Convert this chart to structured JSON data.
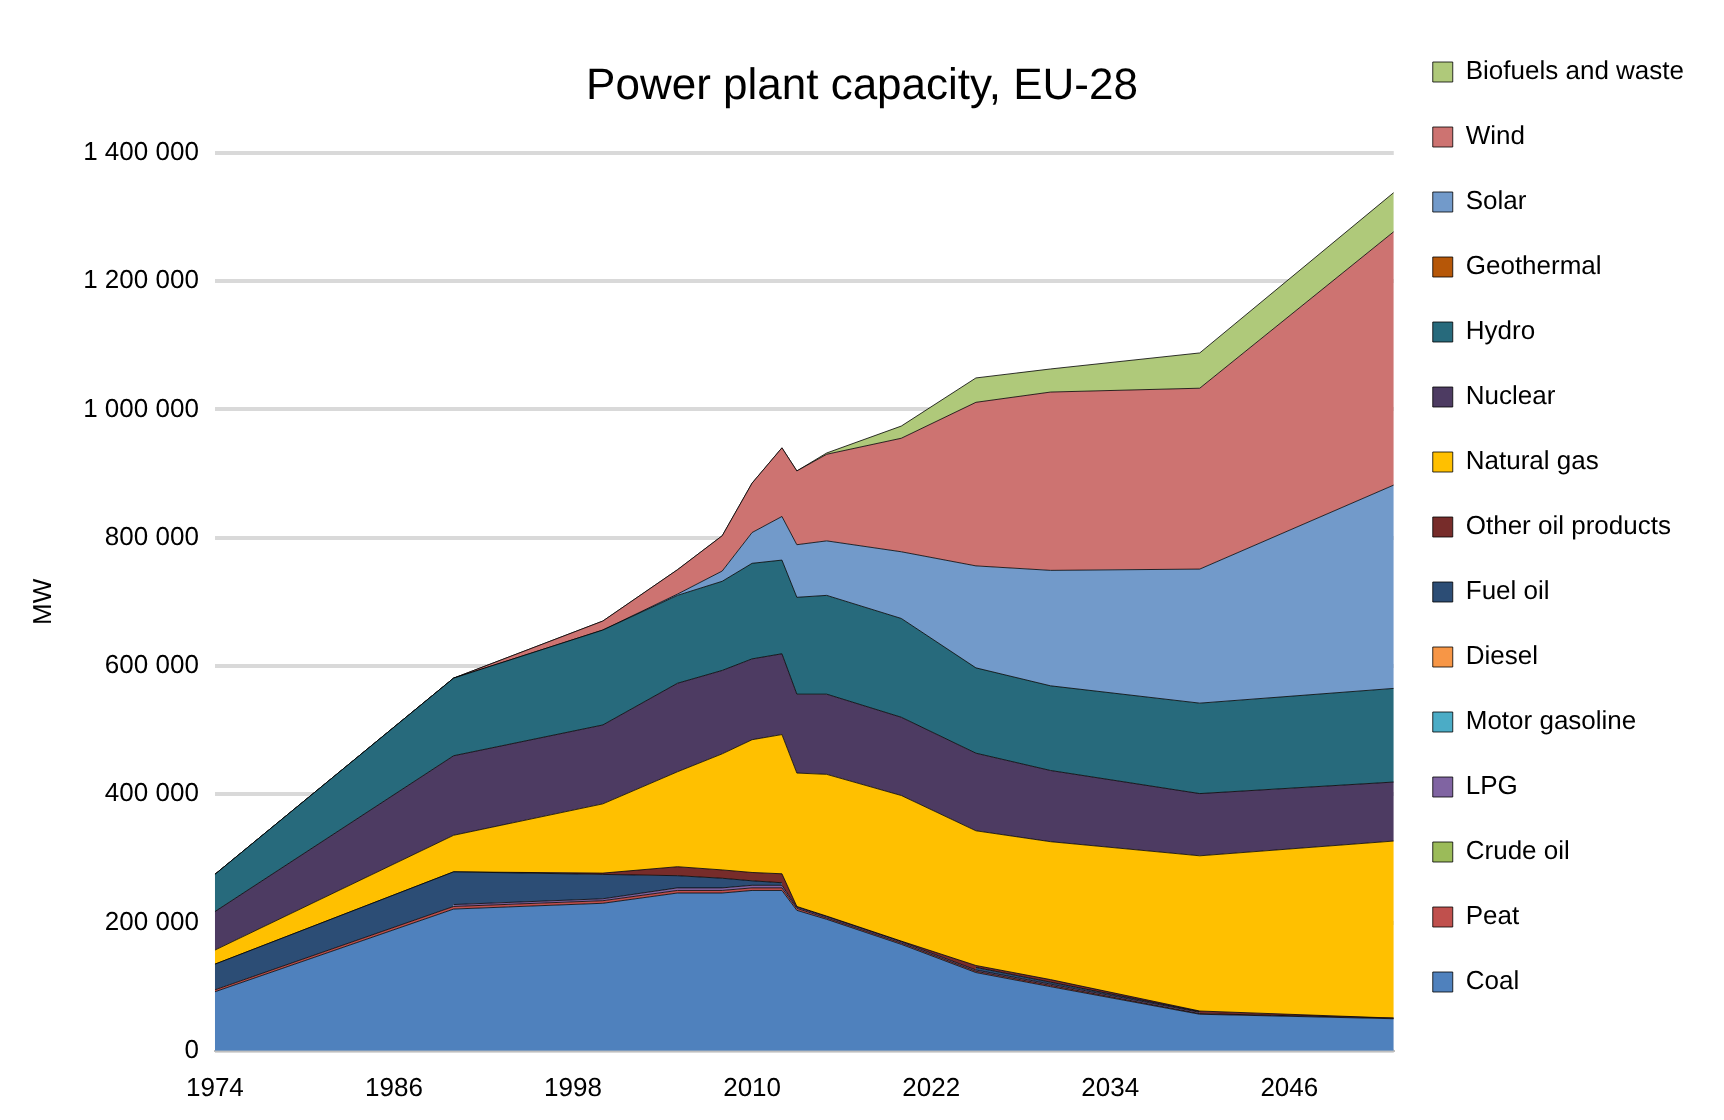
{
  "chart_data": {
    "type": "area",
    "stacked": true,
    "title": "Power plant capacity, EU-28",
    "ylabel": "MW",
    "x": [
      1974,
      1990,
      2000,
      2005,
      2008,
      2010,
      2012,
      2013,
      2015,
      2020,
      2025,
      2030,
      2040,
      2053
    ],
    "xlim": [
      1974,
      2053
    ],
    "xticks": [
      1974,
      1986,
      1998,
      2010,
      2022,
      2034,
      2046
    ],
    "ylim": [
      0,
      1400000
    ],
    "yticks": [
      {
        "value": 0,
        "label": "0"
      },
      {
        "value": 200000,
        "label": "200 000"
      },
      {
        "value": 400000,
        "label": "400 000"
      },
      {
        "value": 600000,
        "label": "600 000"
      },
      {
        "value": 800000,
        "label": "800 000"
      },
      {
        "value": 1000000,
        "label": "1 000 000"
      },
      {
        "value": 1200000,
        "label": "1 200 000"
      },
      {
        "value": 1400000,
        "label": "1 400 000"
      }
    ],
    "grid": "y",
    "legend": "right",
    "marker": "none",
    "series": [
      {
        "name": "Coal",
        "color": "#4f81bd",
        "values": [
          92000,
          221000,
          230000,
          246000,
          246000,
          250000,
          250000,
          219000,
          205000,
          166000,
          122000,
          100000,
          57000,
          50000
        ]
      },
      {
        "name": "Peat",
        "color": "#c0504d",
        "values": [
          3000,
          4000,
          4000,
          4000,
          4000,
          4000,
          4000,
          3000,
          2000,
          2000,
          2000,
          2000,
          1000,
          1000
        ]
      },
      {
        "name": "Crude oil",
        "color": "#9bbb59",
        "values": [
          null,
          null,
          null,
          null,
          null,
          null,
          null,
          null,
          null,
          null,
          null,
          null,
          null,
          null
        ]
      },
      {
        "name": "LPG",
        "color": "#8064a2",
        "values": [
          null,
          3000,
          3000,
          4000,
          4000,
          4000,
          4000,
          2000,
          2000,
          2000,
          2000,
          2000,
          2000,
          null
        ]
      },
      {
        "name": "Motor gasoline",
        "color": "#4bacc6",
        "values": [
          null,
          null,
          null,
          null,
          null,
          null,
          null,
          null,
          null,
          null,
          null,
          null,
          null,
          null
        ]
      },
      {
        "name": "Diesel",
        "color": "#f79646",
        "values": [
          null,
          null,
          null,
          null,
          null,
          null,
          null,
          null,
          null,
          null,
          null,
          null,
          null,
          null
        ]
      },
      {
        "name": "Fuel oil",
        "color": "#2c4d75",
        "values": [
          40000,
          51000,
          38000,
          19000,
          15000,
          7000,
          4000,
          null,
          null,
          null,
          4000,
          3000,
          1000,
          null
        ]
      },
      {
        "name": "Other oil products",
        "color": "#772c2a",
        "values": [
          0,
          0,
          2000,
          14000,
          13000,
          13000,
          14000,
          1000,
          1000,
          1000,
          3000,
          4000,
          1000,
          0
        ]
      },
      {
        "name": "Natural gas",
        "color": "#ffc000",
        "values": [
          22000,
          57000,
          108000,
          148000,
          181000,
          207000,
          217000,
          208000,
          221000,
          227000,
          210000,
          215000,
          242000,
          276000
        ]
      },
      {
        "name": "Nuclear",
        "color": "#4d3b62",
        "values": [
          60000,
          124000,
          123000,
          138000,
          130000,
          126000,
          126000,
          123000,
          125000,
          122000,
          121000,
          111000,
          97000,
          92000
        ]
      },
      {
        "name": "Hydro",
        "color": "#276a7c",
        "values": [
          58000,
          121000,
          148000,
          137000,
          139000,
          149000,
          146000,
          151000,
          154000,
          154000,
          133000,
          132000,
          141000,
          146000
        ]
      },
      {
        "name": "Geothermal",
        "color": "#b65708",
        "values": [
          null,
          null,
          null,
          null,
          null,
          null,
          null,
          null,
          null,
          null,
          null,
          null,
          null,
          null
        ]
      },
      {
        "name": "Solar",
        "color": "#729aca",
        "values": [
          0,
          0,
          0,
          2000,
          16000,
          48000,
          68000,
          82000,
          85000,
          104000,
          159000,
          180000,
          209000,
          317000
        ]
      },
      {
        "name": "Wind",
        "color": "#cd7371",
        "values": [
          0,
          0,
          14000,
          38000,
          55000,
          77000,
          107000,
          115000,
          135000,
          177000,
          255000,
          278000,
          282000,
          395000
        ]
      },
      {
        "name": "Biofuels and waste",
        "color": "#afc97a",
        "values": [
          0,
          0,
          0,
          0,
          0,
          0,
          0,
          0,
          2000,
          19000,
          38000,
          36000,
          55000,
          61000
        ]
      }
    ]
  }
}
